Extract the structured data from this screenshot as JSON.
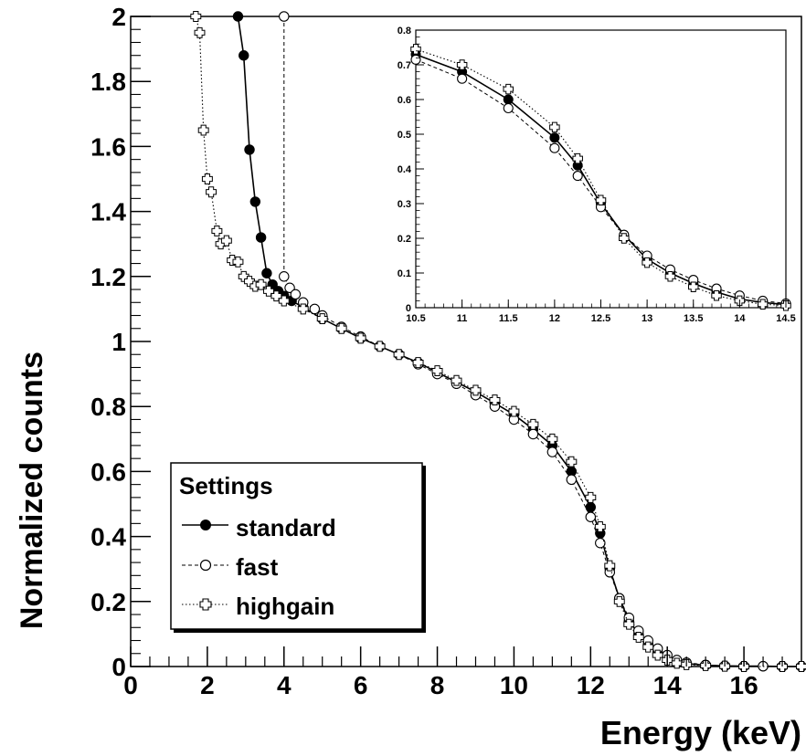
{
  "chart_data": [
    {
      "type": "line",
      "xlabel": "Energy (keV)",
      "ylabel": "Normalized counts",
      "xlim": [
        0,
        17.5
      ],
      "ylim": [
        0,
        2
      ],
      "x_ticks": [
        "0",
        "2",
        "4",
        "6",
        "8",
        "10",
        "12",
        "14",
        "16"
      ],
      "y_ticks": [
        "0",
        "0.2",
        "0.4",
        "0.6",
        "0.8",
        "1",
        "1.2",
        "1.4",
        "1.6",
        "1.8",
        "2"
      ],
      "grid": false,
      "legend": {
        "title": "Settings",
        "placement": "bottom-left",
        "entries": [
          "standard",
          "fast",
          "highgain"
        ]
      },
      "series": [
        {
          "name": "standard",
          "marker": "filled-circle",
          "line": "solid",
          "points": [
            [
              2.8,
              2.0
            ],
            [
              2.95,
              1.88
            ],
            [
              3.1,
              1.59
            ],
            [
              3.25,
              1.43
            ],
            [
              3.4,
              1.32
            ],
            [
              3.55,
              1.21
            ],
            [
              3.7,
              1.175
            ],
            [
              3.85,
              1.155
            ],
            [
              4.0,
              1.14
            ],
            [
              4.2,
              1.125
            ],
            [
              4.5,
              1.105
            ],
            [
              5.0,
              1.07
            ],
            [
              5.5,
              1.04
            ],
            [
              6.0,
              1.01
            ],
            [
              6.5,
              0.985
            ],
            [
              7.0,
              0.96
            ],
            [
              7.5,
              0.935
            ],
            [
              8.0,
              0.905
            ],
            [
              8.5,
              0.875
            ],
            [
              9.0,
              0.845
            ],
            [
              9.5,
              0.81
            ],
            [
              10.0,
              0.775
            ],
            [
              10.5,
              0.73
            ],
            [
              11.0,
              0.68
            ],
            [
              11.5,
              0.6
            ],
            [
              12.0,
              0.49
            ],
            [
              12.25,
              0.41
            ],
            [
              12.5,
              0.3
            ],
            [
              12.75,
              0.21
            ],
            [
              13.0,
              0.14
            ],
            [
              13.25,
              0.1
            ],
            [
              13.5,
              0.07
            ],
            [
              13.75,
              0.045
            ],
            [
              14.0,
              0.025
            ],
            [
              14.25,
              0.015
            ],
            [
              14.5,
              0.009
            ],
            [
              15.0,
              0.004
            ],
            [
              15.5,
              0.002
            ],
            [
              16.0,
              0.001
            ],
            [
              16.5,
              0.001
            ],
            [
              17.0,
              0.0
            ],
            [
              17.5,
              0.0
            ]
          ]
        },
        {
          "name": "fast",
          "marker": "open-circle",
          "line": "dashed",
          "points": [
            [
              4.0,
              2.0
            ],
            [
              4.0,
              1.2
            ],
            [
              4.15,
              1.165
            ],
            [
              4.3,
              1.145
            ],
            [
              4.5,
              1.12
            ],
            [
              4.8,
              1.1
            ],
            [
              5.0,
              1.08
            ],
            [
              5.5,
              1.045
            ],
            [
              6.0,
              1.015
            ],
            [
              6.5,
              0.985
            ],
            [
              7.0,
              0.96
            ],
            [
              7.5,
              0.93
            ],
            [
              8.0,
              0.9
            ],
            [
              8.5,
              0.87
            ],
            [
              9.0,
              0.835
            ],
            [
              9.5,
              0.8
            ],
            [
              10.0,
              0.76
            ],
            [
              10.5,
              0.715
            ],
            [
              11.0,
              0.66
            ],
            [
              11.5,
              0.575
            ],
            [
              12.0,
              0.46
            ],
            [
              12.25,
              0.38
            ],
            [
              12.5,
              0.29
            ],
            [
              12.75,
              0.21
            ],
            [
              13.0,
              0.15
            ],
            [
              13.25,
              0.11
            ],
            [
              13.5,
              0.08
            ],
            [
              13.75,
              0.055
            ],
            [
              14.0,
              0.035
            ],
            [
              14.25,
              0.02
            ],
            [
              14.5,
              0.012
            ],
            [
              15.0,
              0.005
            ],
            [
              15.5,
              0.002
            ],
            [
              16.0,
              0.001
            ],
            [
              16.5,
              0.001
            ],
            [
              17.0,
              0.0
            ],
            [
              17.5,
              0.0
            ]
          ]
        },
        {
          "name": "highgain",
          "marker": "open-cross",
          "line": "dotted",
          "points": [
            [
              1.7,
              2.0
            ],
            [
              1.8,
              1.95
            ],
            [
              1.9,
              1.65
            ],
            [
              2.0,
              1.5
            ],
            [
              2.1,
              1.46
            ],
            [
              2.25,
              1.34
            ],
            [
              2.35,
              1.3
            ],
            [
              2.5,
              1.31
            ],
            [
              2.65,
              1.25
            ],
            [
              2.8,
              1.245
            ],
            [
              2.95,
              1.2
            ],
            [
              3.1,
              1.185
            ],
            [
              3.25,
              1.17
            ],
            [
              3.4,
              1.175
            ],
            [
              3.6,
              1.155
            ],
            [
              3.8,
              1.14
            ],
            [
              4.0,
              1.125
            ],
            [
              4.5,
              1.1
            ],
            [
              5.0,
              1.07
            ],
            [
              5.5,
              1.04
            ],
            [
              6.0,
              1.01
            ],
            [
              6.5,
              0.985
            ],
            [
              7.0,
              0.96
            ],
            [
              7.5,
              0.935
            ],
            [
              8.0,
              0.91
            ],
            [
              8.5,
              0.88
            ],
            [
              9.0,
              0.85
            ],
            [
              9.5,
              0.82
            ],
            [
              10.0,
              0.785
            ],
            [
              10.5,
              0.745
            ],
            [
              11.0,
              0.7
            ],
            [
              11.5,
              0.63
            ],
            [
              12.0,
              0.52
            ],
            [
              12.25,
              0.43
            ],
            [
              12.5,
              0.31
            ],
            [
              12.75,
              0.2
            ],
            [
              13.0,
              0.13
            ],
            [
              13.25,
              0.09
            ],
            [
              13.5,
              0.06
            ],
            [
              13.75,
              0.035
            ],
            [
              14.0,
              0.02
            ],
            [
              14.25,
              0.01
            ],
            [
              14.5,
              0.006
            ],
            [
              15.0,
              0.003
            ],
            [
              15.5,
              0.001
            ],
            [
              16.0,
              0.0
            ],
            [
              17.0,
              0.0
            ],
            [
              17.5,
              0.0
            ]
          ]
        }
      ]
    },
    {
      "type": "line",
      "placement": "inset-top-right",
      "xlim": [
        10.5,
        14.5
      ],
      "ylim": [
        0,
        0.8
      ],
      "x_ticks": [
        "10.5",
        "11",
        "11.5",
        "12",
        "12.5",
        "13",
        "13.5",
        "14",
        "14.5"
      ],
      "y_ticks": [
        "0",
        "0.1",
        "0.2",
        "0.3",
        "0.4",
        "0.5",
        "0.6",
        "0.7",
        "0.8"
      ],
      "series_ref": [
        "standard",
        "fast",
        "highgain"
      ]
    }
  ]
}
